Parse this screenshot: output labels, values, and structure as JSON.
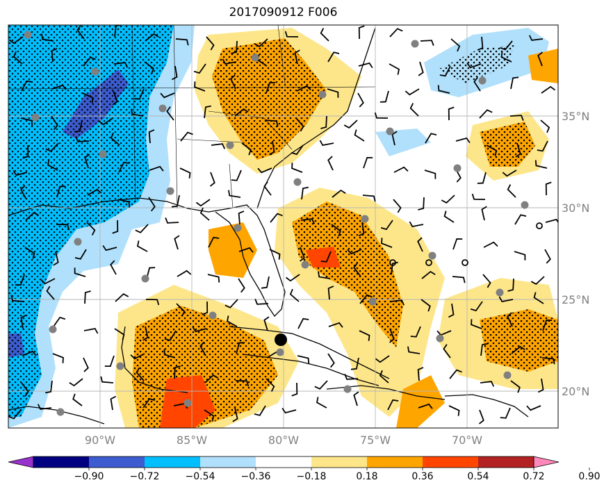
{
  "title": "2017090912 F006",
  "map": {
    "lat_labels": [
      "35°N",
      "30°N",
      "25°N",
      "20°N"
    ],
    "lon_labels": [
      "90°W",
      "85°W",
      "80°W",
      "75°W",
      "70°W"
    ],
    "gridlines": true,
    "stippling": true,
    "wind_barbs": true,
    "station_markers": true,
    "storm_center_marker": true
  },
  "colorbar": {
    "tick_labels": [
      "−0.90",
      "−0.72",
      "−0.54",
      "−0.36",
      "−0.18",
      "0.18",
      "0.36",
      "0.54",
      "0.72",
      "0.90"
    ],
    "colors": [
      "#9932cc",
      "#000080",
      "#3c5ccf",
      "#00bfff",
      "#b0e0fb",
      "#ffffff",
      "#fde68a",
      "#ffa500",
      "#ff4500",
      "#b22222",
      "#ff88bb"
    ],
    "extend": "both"
  }
}
